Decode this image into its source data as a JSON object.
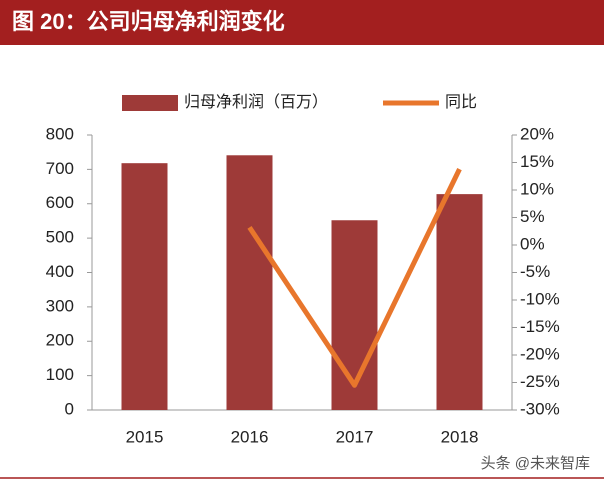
{
  "header": {
    "title": "图 20：公司归母净利润变化"
  },
  "chart_data": {
    "type": "combo",
    "categories": [
      "2015",
      "2016",
      "2017",
      "2018"
    ],
    "series": [
      {
        "name": "归母净利润（百万）",
        "type": "bar",
        "color": "#9e3a38",
        "values": [
          718,
          741,
          552,
          628
        ]
      },
      {
        "name": "同比",
        "type": "line",
        "axis": "y2",
        "color": "#e8762c",
        "values": [
          null,
          3.2,
          -25.5,
          13.8
        ]
      }
    ],
    "ylim": [
      0,
      800
    ],
    "yticks": [
      0,
      100,
      200,
      300,
      400,
      500,
      600,
      700,
      800
    ],
    "y2lim": [
      -30,
      20
    ],
    "y2ticks": [
      {
        "value": -30,
        "label": "-30%"
      },
      {
        "value": -25,
        "label": "-25%"
      },
      {
        "value": -20,
        "label": "-20%"
      },
      {
        "value": -15,
        "label": "-15%"
      },
      {
        "value": -10,
        "label": "-10%"
      },
      {
        "value": -5,
        "label": "-5%"
      },
      {
        "value": 0,
        "label": "0%"
      },
      {
        "value": 5,
        "label": "5%"
      },
      {
        "value": 10,
        "label": "10%"
      },
      {
        "value": 15,
        "label": "15%"
      },
      {
        "value": 20,
        "label": "20%"
      }
    ],
    "legend": "top"
  },
  "footer": {
    "watermark": "头条 @未来智库"
  }
}
